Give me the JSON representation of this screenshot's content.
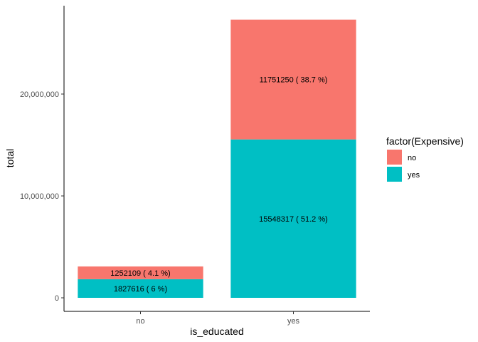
{
  "chart_data": {
    "type": "bar",
    "stacked": true,
    "categories": [
      "no",
      "yes"
    ],
    "series": [
      {
        "name": "no",
        "color": "#F8766D",
        "values": [
          1252109,
          11751250
        ],
        "labels": [
          "1252109 ( 4.1 %)",
          "11751250 ( 38.7 %)"
        ]
      },
      {
        "name": "yes",
        "color": "#00BFC4",
        "values": [
          1827616,
          15548317
        ],
        "labels": [
          "1827616 ( 6 %)",
          "15548317 ( 51.2 %)"
        ]
      }
    ],
    "xlabel": "is_educated",
    "ylabel": "total",
    "ylim": [
      0,
      30000000
    ],
    "yticks": [
      0,
      10000000,
      20000000
    ],
    "ytick_labels": [
      "0",
      "10,000,000",
      "20,000,000"
    ],
    "legend_title": "factor(Expensive)",
    "legend_position": "right",
    "grid": false
  }
}
